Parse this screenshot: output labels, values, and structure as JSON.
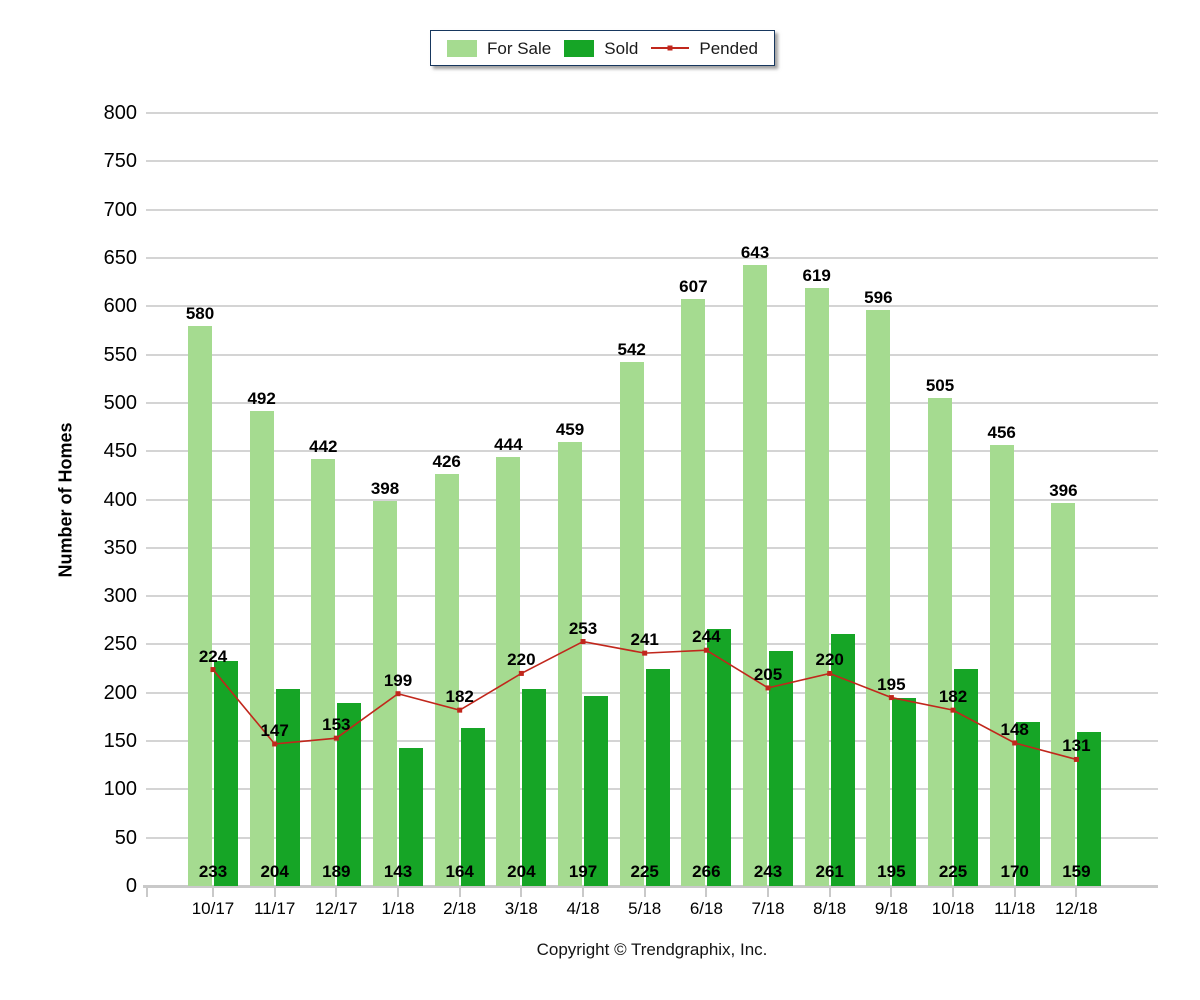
{
  "chart_data": {
    "type": "bar",
    "subtype": "grouped-bars-with-line-overlay",
    "categories": [
      "10/17",
      "11/17",
      "12/17",
      "1/18",
      "2/18",
      "3/18",
      "4/18",
      "5/18",
      "6/18",
      "7/18",
      "8/18",
      "9/18",
      "10/18",
      "11/18",
      "12/18"
    ],
    "series": [
      {
        "name": "For Sale",
        "type": "bar",
        "color": "#A5DB90",
        "values": [
          580,
          492,
          442,
          398,
          426,
          444,
          459,
          542,
          607,
          643,
          619,
          596,
          505,
          456,
          396
        ],
        "label_position": "above-bar"
      },
      {
        "name": "Sold",
        "type": "bar",
        "color": "#16A526",
        "values": [
          233,
          204,
          189,
          143,
          164,
          204,
          197,
          225,
          266,
          243,
          261,
          195,
          225,
          170,
          159
        ],
        "label_position": "inside-bottom"
      },
      {
        "name": "Pended",
        "type": "line",
        "color": "#C1271C",
        "values": [
          224,
          147,
          153,
          199,
          182,
          220,
          253,
          241,
          244,
          205,
          220,
          195,
          182,
          148,
          131
        ],
        "label_position": "above-point",
        "marker": "square"
      }
    ],
    "title": "",
    "xlabel": "",
    "ylabel": "Number of Homes",
    "ylim": [
      0,
      800
    ],
    "ytick_step": 50,
    "grid": "horizontal",
    "grid_color": "#D4D4D4",
    "axis_color": "#C9C9C9",
    "legend_position": "top-center",
    "legend_border_color": "#17375E",
    "footer": "Copyright © Trendgraphix, Inc."
  }
}
